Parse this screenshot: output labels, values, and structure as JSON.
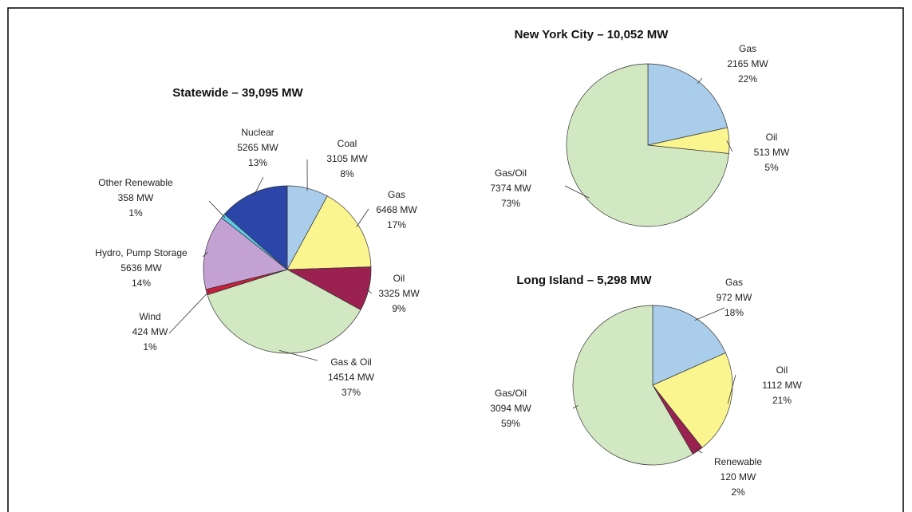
{
  "chart_data": [
    {
      "type": "pie",
      "title": "Statewide – 39,095 MW",
      "categories": [
        "Coal",
        "Gas",
        "Oil",
        "Gas & Oil",
        "Wind",
        "Hydro, Pump Storage",
        "Other Renewable",
        "Nuclear"
      ],
      "values": [
        3105,
        6468,
        3325,
        14514,
        424,
        5636,
        358,
        5265
      ],
      "value_labels": [
        "3105 MW",
        "6468 MW",
        "3325 MW",
        "14514 MW",
        "424 MW",
        "5636 MW",
        "358 MW",
        "5265 MW"
      ],
      "shares": [
        8,
        17,
        9,
        37,
        1,
        14,
        1,
        13
      ],
      "share_labels": [
        "8%",
        "17%",
        "9%",
        "37%",
        "1%",
        "14%",
        "1%",
        "13%"
      ],
      "colors": [
        "#a9cdea",
        "#fbf590",
        "#9a2150",
        "#d2e8c2",
        "#c2203c",
        "#c3a1d2",
        "#5cc7e6",
        "#2b45a8"
      ]
    },
    {
      "type": "pie",
      "title": "New York City – 10,052 MW",
      "categories": [
        "Gas",
        "Oil",
        "Gas/Oil"
      ],
      "values": [
        2165,
        513,
        7374
      ],
      "value_labels": [
        "2165 MW",
        "513 MW",
        "7374 MW"
      ],
      "shares": [
        22,
        5,
        73
      ],
      "share_labels": [
        "22%",
        "5%",
        "73%"
      ],
      "colors": [
        "#a9cdea",
        "#fbf590",
        "#d2e8c2"
      ]
    },
    {
      "type": "pie",
      "title": "Long Island – 5,298 MW",
      "categories": [
        "Gas",
        "Oil",
        "Renewable",
        "Gas/Oil"
      ],
      "values": [
        972,
        1112,
        120,
        3094
      ],
      "value_labels": [
        "972 MW",
        "1112 MW",
        "120 MW",
        "3094 MW"
      ],
      "shares": [
        18,
        21,
        2,
        59
      ],
      "share_labels": [
        "18%",
        "21%",
        "2%",
        "59%"
      ],
      "colors": [
        "#a9cdea",
        "#fbf590",
        "#9a2150",
        "#d2e8c2"
      ]
    }
  ]
}
